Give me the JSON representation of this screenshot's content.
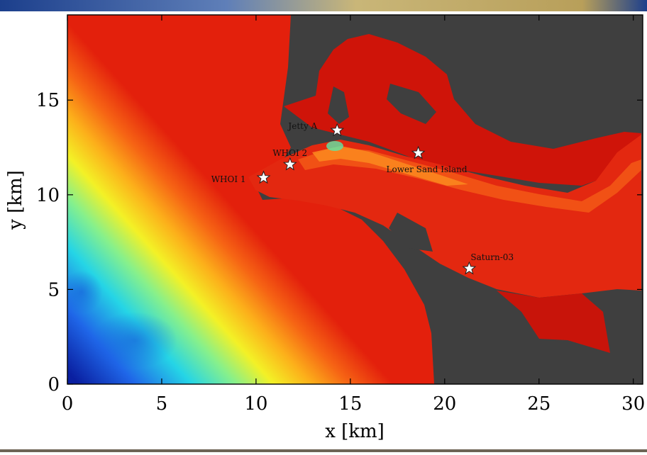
{
  "chart_data": {
    "type": "heatmap",
    "title": "",
    "xlabel": "x [km]",
    "ylabel": "y [km]",
    "xlim": [
      0,
      30.5
    ],
    "ylim": [
      0,
      19.5
    ],
    "x_ticks": [
      0,
      5,
      10,
      15,
      20,
      25,
      30
    ],
    "y_ticks": [
      0,
      5,
      10,
      15
    ],
    "colormap": "jet",
    "land_color": "#3f3f3f",
    "grid": false,
    "stations": [
      {
        "name": "Jetty A",
        "x": 14.3,
        "y": 13.4
      },
      {
        "name": "WHOI 2",
        "x": 11.8,
        "y": 11.6
      },
      {
        "name": "WHOI 1",
        "x": 10.4,
        "y": 10.9
      },
      {
        "name": "Lower Sand Island",
        "x": 18.6,
        "y": 12.2
      },
      {
        "name": "Saturn-03",
        "x": 21.3,
        "y": 6.1
      }
    ]
  }
}
